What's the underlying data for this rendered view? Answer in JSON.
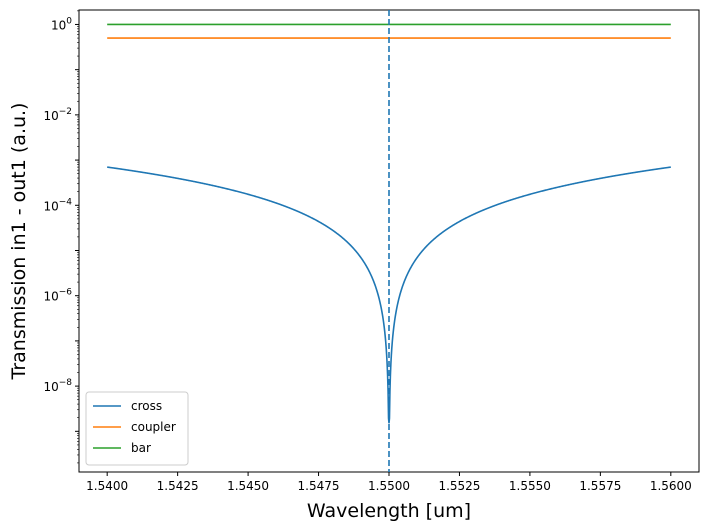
{
  "chart_data": {
    "type": "line",
    "title": "",
    "xlabel": "Wavelength [um]",
    "ylabel": "Transmission in1 - out1 (a.u.)",
    "xlim": [
      1.539,
      1.561
    ],
    "ylim_exponent": [
      -9.9,
      0.32
    ],
    "y_scale": "log",
    "x_ticks": [
      {
        "value": 1.54,
        "label": "1.5400"
      },
      {
        "value": 1.5425,
        "label": "1.5425"
      },
      {
        "value": 1.545,
        "label": "1.5450"
      },
      {
        "value": 1.5475,
        "label": "1.5475"
      },
      {
        "value": 1.55,
        "label": "1.5500"
      },
      {
        "value": 1.5525,
        "label": "1.5525"
      },
      {
        "value": 1.555,
        "label": "1.5550"
      },
      {
        "value": 1.5575,
        "label": "1.5575"
      },
      {
        "value": 1.56,
        "label": "1.5600"
      }
    ],
    "y_ticks": [
      {
        "exponent": 0,
        "base": "10",
        "sup": "0"
      },
      {
        "exponent": -2,
        "base": "10",
        "sup": "−2"
      },
      {
        "exponent": -4,
        "base": "10",
        "sup": "−4"
      },
      {
        "exponent": -6,
        "base": "10",
        "sup": "−6"
      },
      {
        "exponent": -8,
        "base": "10",
        "sup": "−8"
      }
    ],
    "series": [
      {
        "name": "cross",
        "color": "#1f77b4",
        "model": "notch",
        "amplitude_at_edge": 0.0007,
        "center": 1.55,
        "min_value": 1.5e-09
      },
      {
        "name": "coupler",
        "color": "#ff7f0e",
        "model": "constant",
        "value": 0.5
      },
      {
        "name": "bar",
        "color": "#2ca02c",
        "model": "constant",
        "value": 1.0
      }
    ],
    "x_range": [
      1.54,
      1.56
    ],
    "vline": {
      "x": 1.55,
      "color": "#1f77b4",
      "style": "dashed"
    },
    "legend": {
      "position": "lower-left"
    }
  }
}
